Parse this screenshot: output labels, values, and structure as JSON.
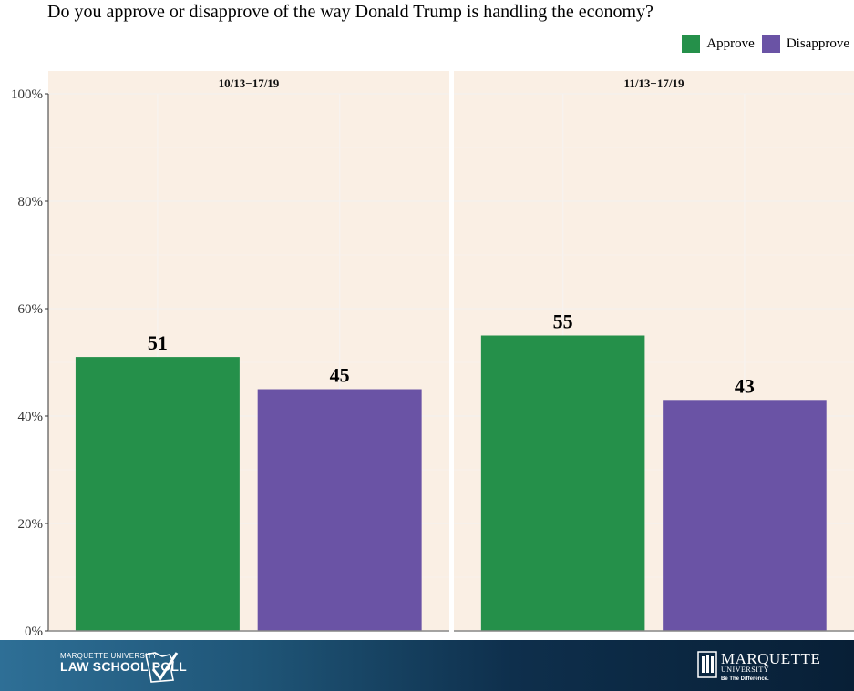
{
  "title": "Do you approve or disapprove of the way Donald Trump is handling the economy?",
  "legend": [
    {
      "label": "Approve",
      "color": "#25904a"
    },
    {
      "label": "Disapprove",
      "color": "#6a53a5"
    }
  ],
  "chart_data": {
    "type": "bar",
    "title": "Do you approve or disapprove of the way Donald Trump is handling the economy?",
    "y_ticks": [
      "0%",
      "20%",
      "40%",
      "60%",
      "80%",
      "100%"
    ],
    "ylim": [
      0,
      100
    ],
    "series_names": [
      "Approve",
      "Disapprove"
    ],
    "colors": [
      "#25904a",
      "#6a53a5"
    ],
    "facets": [
      {
        "label": "10/13−17/19",
        "values": [
          51,
          45
        ]
      },
      {
        "label": "11/13−17/19",
        "values": [
          55,
          43
        ]
      }
    ],
    "grid": true,
    "legend_position": "top-right"
  },
  "footer": {
    "left_line1": "MARQUETTE UNIVERSITY",
    "left_line2": "LAW SCHOOL POLL",
    "right_name": "MARQUETTE",
    "right_sub": "UNIVERSITY",
    "right_tag": "Be The Difference."
  }
}
